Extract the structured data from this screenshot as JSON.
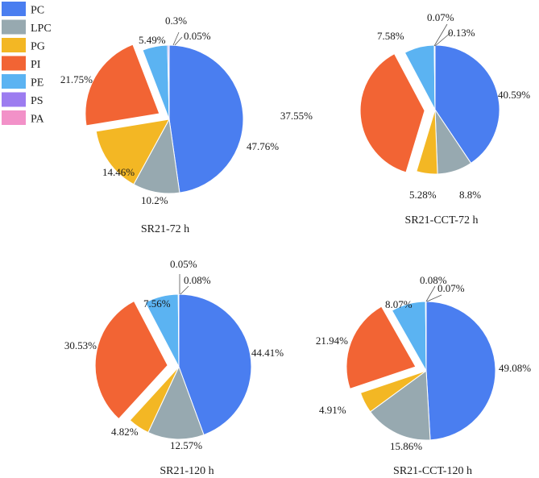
{
  "chart_data": {
    "type": "pie",
    "legend": [
      {
        "name": "PC",
        "color": "#4a7ef0"
      },
      {
        "name": "LPC",
        "color": "#97a9b0"
      },
      {
        "name": "PG",
        "color": "#f3b724"
      },
      {
        "name": "PI",
        "color": "#f26434"
      },
      {
        "name": "PE",
        "color": "#5bb3f2"
      },
      {
        "name": "PS",
        "color": "#9c7cf0"
      },
      {
        "name": "PA",
        "color": "#f291c8"
      }
    ],
    "charts": [
      {
        "title": "SR21-72 h",
        "slices": [
          {
            "name": "PC",
            "value": 47.76,
            "label": "47.76%"
          },
          {
            "name": "LPC",
            "value": 10.2,
            "label": "10.2%"
          },
          {
            "name": "PG",
            "value": 14.46,
            "label": "14.46%"
          },
          {
            "name": "PI",
            "value": 21.75,
            "label": "21.75%",
            "exploded": true
          },
          {
            "name": "PE",
            "value": 5.49,
            "label": "5.49%"
          },
          {
            "name": "PS",
            "value": 0.3,
            "label": "0.3%"
          },
          {
            "name": "PA",
            "value": 0.05,
            "label": "0.05%"
          }
        ]
      },
      {
        "title": "SR21-CCT-72 h",
        "slices": [
          {
            "name": "PC",
            "value": 40.59,
            "label": "40.59%"
          },
          {
            "name": "LPC",
            "value": 8.8,
            "label": "8.8%"
          },
          {
            "name": "PG",
            "value": 5.28,
            "label": "5.28%"
          },
          {
            "name": "PI",
            "value": 37.55,
            "label": "37.55%",
            "exploded": true
          },
          {
            "name": "PE",
            "value": 7.58,
            "label": "7.58%"
          },
          {
            "name": "PS",
            "value": 0.07,
            "label": "0.07%"
          },
          {
            "name": "PA",
            "value": 0.13,
            "label": "0.13%"
          }
        ]
      },
      {
        "title": "SR21-120 h",
        "slices": [
          {
            "name": "PC",
            "value": 44.41,
            "label": "44.41%"
          },
          {
            "name": "LPC",
            "value": 12.57,
            "label": "12.57%"
          },
          {
            "name": "PG",
            "value": 4.82,
            "label": "4.82%"
          },
          {
            "name": "PI",
            "value": 30.53,
            "label": "30.53%",
            "exploded": true
          },
          {
            "name": "PE",
            "value": 7.56,
            "label": "7.56%"
          },
          {
            "name": "PS",
            "value": 0.05,
            "label": "0.05%"
          },
          {
            "name": "PA",
            "value": 0.08,
            "label": "0.08%"
          }
        ]
      },
      {
        "title": "SR21-CCT-120 h",
        "slices": [
          {
            "name": "PC",
            "value": 49.08,
            "label": "49.08%"
          },
          {
            "name": "LPC",
            "value": 15.86,
            "label": "15.86%"
          },
          {
            "name": "PG",
            "value": 4.91,
            "label": "4.91%"
          },
          {
            "name": "PI",
            "value": 21.94,
            "label": "21.94%",
            "exploded": true
          },
          {
            "name": "PE",
            "value": 8.07,
            "label": "8.07%"
          },
          {
            "name": "PS",
            "value": 0.08,
            "label": "0.08%"
          },
          {
            "name": "PA",
            "value": 0.07,
            "label": "0.07%"
          }
        ]
      }
    ]
  }
}
